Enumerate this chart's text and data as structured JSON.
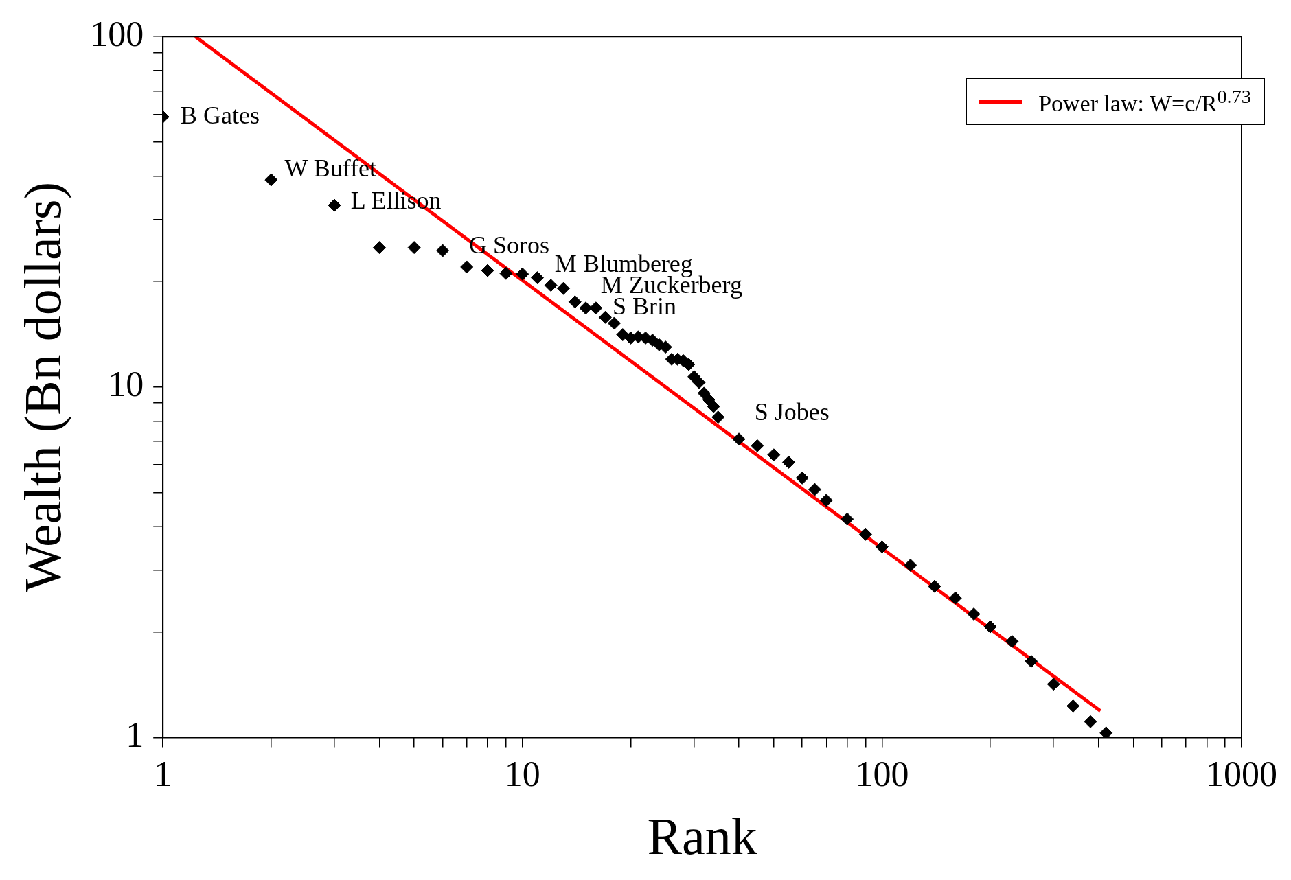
{
  "chart_data": {
    "type": "scatter",
    "xlabel": "Rank",
    "ylabel": "Wealth (Bn dollars)",
    "log": "xy",
    "marker": "diamond",
    "grid": false,
    "legend": "top right",
    "xlim": [
      1,
      1000
    ],
    "ylim": [
      1,
      100
    ],
    "xticks": [
      1,
      {
        "value": 2,
        "label": null
      },
      {
        "value": 3,
        "label": null
      },
      {
        "value": 4,
        "label": null
      },
      {
        "value": 5,
        "label": null
      },
      {
        "value": 6,
        "label": null
      },
      {
        "value": 7,
        "label": null
      },
      {
        "value": 8,
        "label": null
      },
      {
        "value": 9,
        "label": null
      },
      10,
      {
        "value": 20,
        "label": null
      },
      {
        "value": 30,
        "label": null
      },
      {
        "value": 40,
        "label": null
      },
      {
        "value": 50,
        "label": null
      },
      {
        "value": 60,
        "label": null
      },
      {
        "value": 70,
        "label": null
      },
      {
        "value": 80,
        "label": null
      },
      {
        "value": 90,
        "label": null
      },
      100,
      {
        "value": 200,
        "label": null
      },
      {
        "value": 300,
        "label": null
      },
      {
        "value": 400,
        "label": null
      },
      {
        "value": 500,
        "label": null
      },
      {
        "value": 600,
        "label": null
      },
      {
        "value": 700,
        "label": null
      },
      {
        "value": 800,
        "label": null
      },
      {
        "value": 900,
        "label": null
      },
      1000
    ],
    "yticks": [
      1,
      {
        "value": 2,
        "label": null
      },
      {
        "value": 3,
        "label": null
      },
      {
        "value": 4,
        "label": null
      },
      {
        "value": 5,
        "label": null
      },
      {
        "value": 6,
        "label": null
      },
      {
        "value": 7,
        "label": null
      },
      {
        "value": 8,
        "label": null
      },
      {
        "value": 9,
        "label": null
      },
      10,
      {
        "value": 20,
        "label": null
      },
      {
        "value": 30,
        "label": null
      },
      {
        "value": 40,
        "label": null
      },
      {
        "value": 50,
        "label": null
      },
      {
        "value": 60,
        "label": null
      },
      {
        "value": 70,
        "label": null
      },
      {
        "value": 80,
        "label": null
      },
      {
        "value": 90,
        "label": null
      },
      100
    ],
    "series": [
      {
        "color": "#000000",
        "x": [
          1,
          2,
          3,
          4,
          5,
          6,
          7,
          8,
          9,
          10,
          11,
          12,
          13,
          14,
          15,
          16,
          17,
          18,
          19,
          20,
          21,
          22,
          23,
          24,
          25,
          26,
          27,
          28,
          29,
          30,
          31,
          32,
          33,
          34,
          35,
          40,
          45,
          50,
          55,
          60,
          65,
          70,
          80,
          90,
          100,
          120,
          140,
          160,
          180,
          200,
          230,
          260,
          300,
          340,
          380,
          420
        ],
        "values": [
          59,
          39,
          33,
          25,
          25,
          24.5,
          22,
          21.5,
          21.1,
          21,
          20.5,
          19.5,
          19.1,
          17.5,
          16.8,
          16.8,
          15.8,
          15.2,
          14.1,
          13.8,
          13.9,
          13.8,
          13.6,
          13.2,
          13,
          12,
          12,
          11.9,
          11.6,
          10.7,
          10.3,
          9.6,
          9.2,
          8.8,
          8.2,
          7.1,
          6.8,
          6.4,
          6.1,
          5.5,
          5.1,
          4.75,
          4.2,
          3.8,
          3.5,
          3.1,
          2.7,
          2.5,
          2.25,
          2.07,
          1.88,
          1.65,
          1.42,
          1.23,
          1.11,
          1.03
        ]
      },
      {
        "type": "line",
        "name": "Power law: W=c/R$^{0.73}$",
        "color": "#ff0000",
        "line_style": "solid",
        "marker": "none",
        "x": [
          1.23,
          405
        ],
        "values": [
          100,
          1.19
        ]
      }
    ],
    "annotations": [
      "B Gates",
      "W Buffet",
      "L Ellison",
      "G Soros",
      "M Blumbereg",
      "M Zuckerberg",
      "S Brin",
      "S Jobes"
    ]
  }
}
